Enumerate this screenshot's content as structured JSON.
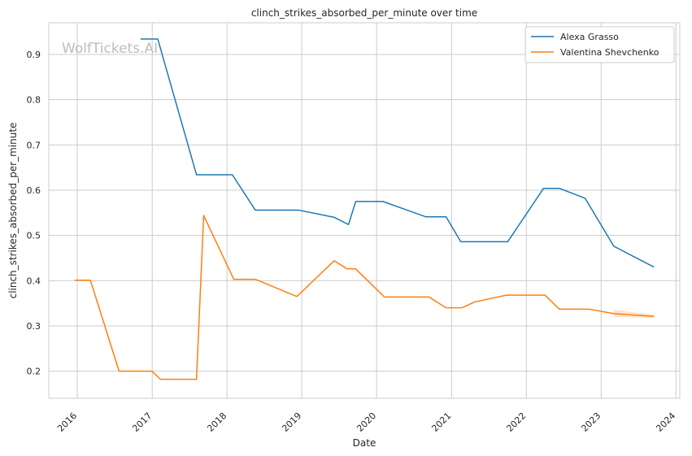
{
  "chart_data": {
    "type": "line",
    "title": "clinch_strikes_absorbed_per_minute over time",
    "xlabel": "Date",
    "ylabel": "clinch_strikes_absorbed_per_minute",
    "watermark": "WolfTickets.AI",
    "xlim": [
      "2015-08-15",
      "2024-01-20"
    ],
    "ylim": [
      0.14,
      0.97
    ],
    "x_ticks": [
      "2016",
      "2017",
      "2018",
      "2019",
      "2020",
      "2021",
      "2022",
      "2023",
      "2024"
    ],
    "y_ticks": [
      0.2,
      0.3,
      0.4,
      0.5,
      0.6,
      0.7,
      0.8,
      0.9
    ],
    "grid": true,
    "legend_position": "top-right",
    "series": [
      {
        "name": "Alexa Grasso",
        "color": "#1f77b4",
        "points": [
          {
            "x": "2016-11-05",
            "y": 0.934
          },
          {
            "x": "2017-01-28",
            "y": 0.934
          },
          {
            "x": "2017-08-05",
            "y": 0.634
          },
          {
            "x": "2018-01-27",
            "y": 0.634
          },
          {
            "x": "2018-05-19",
            "y": 0.556
          },
          {
            "x": "2018-12-15",
            "y": 0.556
          },
          {
            "x": "2019-06-08",
            "y": 0.54
          },
          {
            "x": "2019-08-17",
            "y": 0.524
          },
          {
            "x": "2019-09-21",
            "y": 0.575
          },
          {
            "x": "2020-02-01",
            "y": 0.575
          },
          {
            "x": "2020-08-29",
            "y": 0.541
          },
          {
            "x": "2020-12-05",
            "y": 0.541
          },
          {
            "x": "2021-02-15",
            "y": 0.486
          },
          {
            "x": "2021-10-02",
            "y": 0.486
          },
          {
            "x": "2022-03-26",
            "y": 0.604
          },
          {
            "x": "2022-06-11",
            "y": 0.604
          },
          {
            "x": "2022-10-15",
            "y": 0.582
          },
          {
            "x": "2023-03-04",
            "y": 0.476
          },
          {
            "x": "2023-09-16",
            "y": 0.43
          }
        ]
      },
      {
        "name": "Valentina Shevchenko",
        "color": "#ff7f0e",
        "points": [
          {
            "x": "2015-12-19",
            "y": 0.401
          },
          {
            "x": "2016-03-05",
            "y": 0.401
          },
          {
            "x": "2016-07-23",
            "y": 0.2
          },
          {
            "x": "2016-12-30",
            "y": 0.2
          },
          {
            "x": "2017-02-10",
            "y": 0.182
          },
          {
            "x": "2017-08-05",
            "y": 0.182
          },
          {
            "x": "2017-09-09",
            "y": 0.544
          },
          {
            "x": "2018-02-03",
            "y": 0.403
          },
          {
            "x": "2018-05-19",
            "y": 0.403
          },
          {
            "x": "2018-12-08",
            "y": 0.365
          },
          {
            "x": "2019-06-08",
            "y": 0.444
          },
          {
            "x": "2019-08-10",
            "y": 0.426
          },
          {
            "x": "2019-09-21",
            "y": 0.426
          },
          {
            "x": "2020-02-08",
            "y": 0.364
          },
          {
            "x": "2020-09-12",
            "y": 0.364
          },
          {
            "x": "2020-12-05",
            "y": 0.34
          },
          {
            "x": "2021-02-20",
            "y": 0.34
          },
          {
            "x": "2021-04-24",
            "y": 0.353
          },
          {
            "x": "2021-09-25",
            "y": 0.368
          },
          {
            "x": "2022-04-02",
            "y": 0.368
          },
          {
            "x": "2022-06-11",
            "y": 0.337
          },
          {
            "x": "2022-11-05",
            "y": 0.337
          },
          {
            "x": "2023-03-04",
            "y": 0.327
          },
          {
            "x": "2023-09-16",
            "y": 0.321
          }
        ],
        "band": [
          {
            "x": "2023-03-04",
            "lo": 0.319,
            "hi": 0.336
          },
          {
            "x": "2023-09-16",
            "lo": 0.318,
            "hi": 0.325
          }
        ]
      }
    ]
  }
}
